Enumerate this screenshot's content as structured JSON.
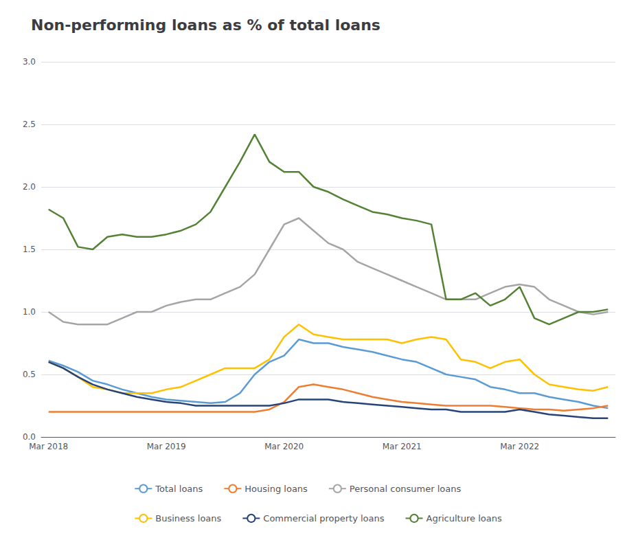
{
  "chart_data": {
    "type": "line",
    "title": "Non-performing loans as % of total loans",
    "categories": [
      "Mar 2018",
      null,
      null,
      null,
      null,
      null,
      null,
      null,
      "Mar 2019",
      null,
      null,
      null,
      null,
      null,
      null,
      null,
      "Mar 2020",
      null,
      null,
      null,
      null,
      null,
      null,
      null,
      "Mar 2021",
      null,
      null,
      null,
      null,
      null,
      null,
      null,
      "Mar 2022",
      null,
      null,
      null,
      null,
      null,
      null
    ],
    "ylim": [
      0,
      3.0
    ],
    "yticks": [
      {
        "value": 0.0,
        "label": "0.0"
      },
      0.5,
      {
        "value": 1.0,
        "label": "1.0"
      },
      1.5,
      {
        "value": 2.0,
        "label": "2.0"
      },
      2.5,
      {
        "value": 3.0,
        "label": "3.0"
      }
    ],
    "grid": true,
    "legend": "bottom",
    "series": [
      {
        "name": "Total loans",
        "color": "#5b9bd5",
        "values": [
          0.61,
          0.57,
          0.52,
          0.45,
          0.42,
          0.38,
          0.35,
          0.32,
          0.3,
          0.29,
          0.28,
          0.27,
          0.28,
          0.35,
          0.5,
          0.6,
          0.65,
          0.78,
          0.75,
          0.75,
          0.72,
          0.7,
          0.68,
          0.65,
          0.62,
          0.6,
          0.55,
          0.5,
          0.48,
          0.46,
          0.4,
          0.38,
          0.35,
          0.35,
          0.32,
          0.3,
          0.28,
          0.25,
          0.23
        ]
      },
      {
        "name": "Housing loans",
        "color": "#ed7d31",
        "values": [
          0.2,
          0.2,
          0.2,
          0.2,
          0.2,
          0.2,
          0.2,
          0.2,
          0.2,
          0.2,
          0.2,
          0.2,
          0.2,
          0.2,
          0.2,
          0.22,
          0.28,
          0.4,
          0.42,
          0.4,
          0.38,
          0.35,
          0.32,
          0.3,
          0.28,
          0.27,
          0.26,
          0.25,
          0.25,
          0.25,
          0.25,
          0.24,
          0.23,
          0.22,
          0.22,
          0.21,
          0.22,
          0.23,
          0.25
        ]
      },
      {
        "name": "Personal consumer loans",
        "color": "#a5a5a5",
        "values": [
          1.0,
          0.92,
          0.9,
          0.9,
          0.9,
          0.95,
          1.0,
          1.0,
          1.05,
          1.08,
          1.1,
          1.1,
          1.15,
          1.2,
          1.3,
          1.5,
          1.7,
          1.75,
          1.65,
          1.55,
          1.5,
          1.4,
          1.35,
          1.3,
          1.25,
          1.2,
          1.15,
          1.1,
          1.1,
          1.1,
          1.15,
          1.2,
          1.22,
          1.2,
          1.1,
          1.05,
          1.0,
          0.98,
          1.0
        ]
      },
      {
        "name": "Business loans",
        "color": "#ffc000",
        "values": [
          0.6,
          0.55,
          0.48,
          0.4,
          0.38,
          0.35,
          0.35,
          0.35,
          0.38,
          0.4,
          0.45,
          0.5,
          0.55,
          0.55,
          0.55,
          0.62,
          0.8,
          0.9,
          0.82,
          0.8,
          0.78,
          0.78,
          0.78,
          0.78,
          0.75,
          0.78,
          0.8,
          0.78,
          0.62,
          0.6,
          0.55,
          0.6,
          0.62,
          0.5,
          0.42,
          0.4,
          0.38,
          0.37,
          0.4
        ]
      },
      {
        "name": "Commercial property loans",
        "color": "#264478",
        "values": [
          0.6,
          0.55,
          0.48,
          0.42,
          0.38,
          0.35,
          0.32,
          0.3,
          0.28,
          0.27,
          0.25,
          0.25,
          0.25,
          0.25,
          0.25,
          0.25,
          0.27,
          0.3,
          0.3,
          0.3,
          0.28,
          0.27,
          0.26,
          0.25,
          0.24,
          0.23,
          0.22,
          0.22,
          0.2,
          0.2,
          0.2,
          0.2,
          0.22,
          0.2,
          0.18,
          0.17,
          0.16,
          0.15,
          0.15
        ]
      },
      {
        "name": "Agriculture loans",
        "color": "#548235",
        "values": [
          1.82,
          1.75,
          1.52,
          1.5,
          1.6,
          1.62,
          1.6,
          1.6,
          1.62,
          1.65,
          1.7,
          1.8,
          2.0,
          2.2,
          2.42,
          2.2,
          2.12,
          2.12,
          2.0,
          1.96,
          1.9,
          1.85,
          1.8,
          1.78,
          1.75,
          1.73,
          1.7,
          1.1,
          1.1,
          1.15,
          1.05,
          1.1,
          1.2,
          0.95,
          0.9,
          0.95,
          1.0,
          1.0,
          1.02
        ]
      }
    ]
  }
}
